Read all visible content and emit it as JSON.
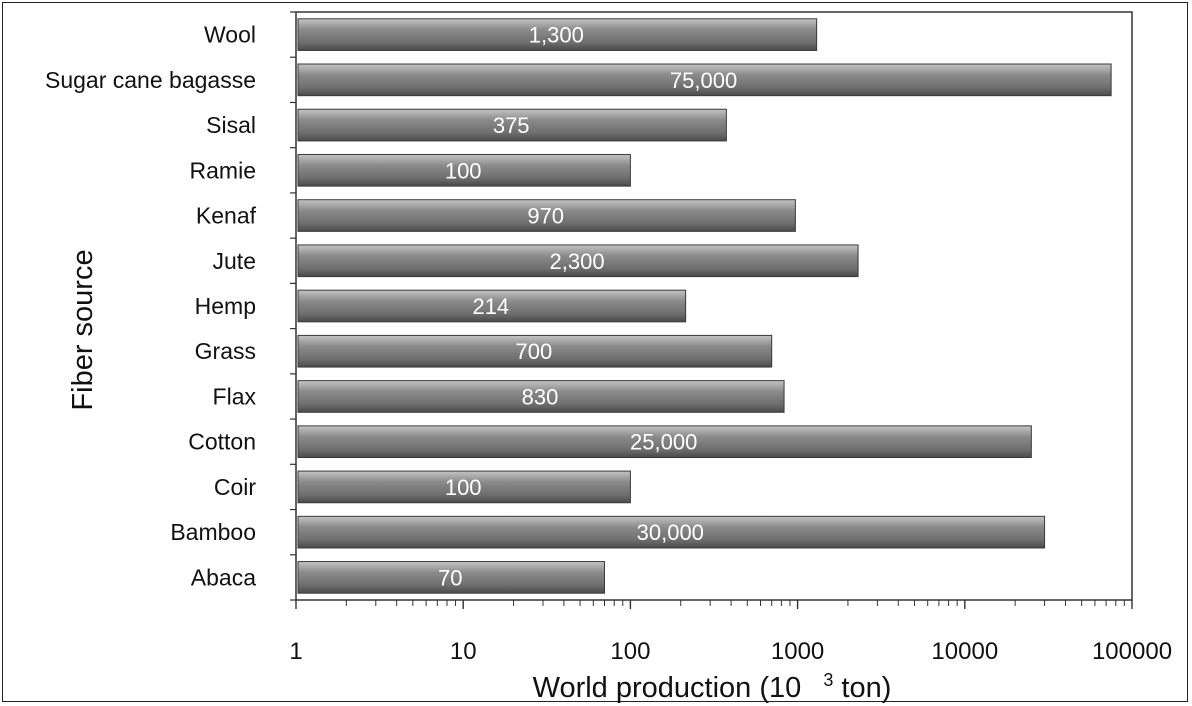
{
  "chart_data": {
    "type": "bar",
    "orientation": "horizontal",
    "x_scale": "log",
    "xlim": [
      1,
      100000
    ],
    "x_ticks": [
      "1",
      "10",
      "100",
      "1000",
      "10000",
      "100000"
    ],
    "xlabel": "World production (10",
    "xlabel_superscript": "3",
    "xlabel_suffix": " ton)",
    "ylabel": "Fiber source",
    "legend": "none",
    "grid": false,
    "bar_color": "#7a7a7a",
    "categories": [
      "Wool",
      "Sugar cane bagasse",
      "Sisal",
      "Ramie",
      "Kenaf",
      "Jute",
      "Hemp",
      "Grass",
      "Flax",
      "Cotton",
      "Coir",
      "Bamboo",
      "Abaca"
    ],
    "values": [
      1300,
      75000,
      375,
      100,
      970,
      2300,
      214,
      700,
      830,
      25000,
      100,
      30000,
      70
    ],
    "data_labels": [
      "1,300",
      "75,000",
      "375",
      "100",
      "970",
      "2,300",
      "214",
      "700",
      "830",
      "25,000",
      "100",
      "30,000",
      "70"
    ]
  }
}
